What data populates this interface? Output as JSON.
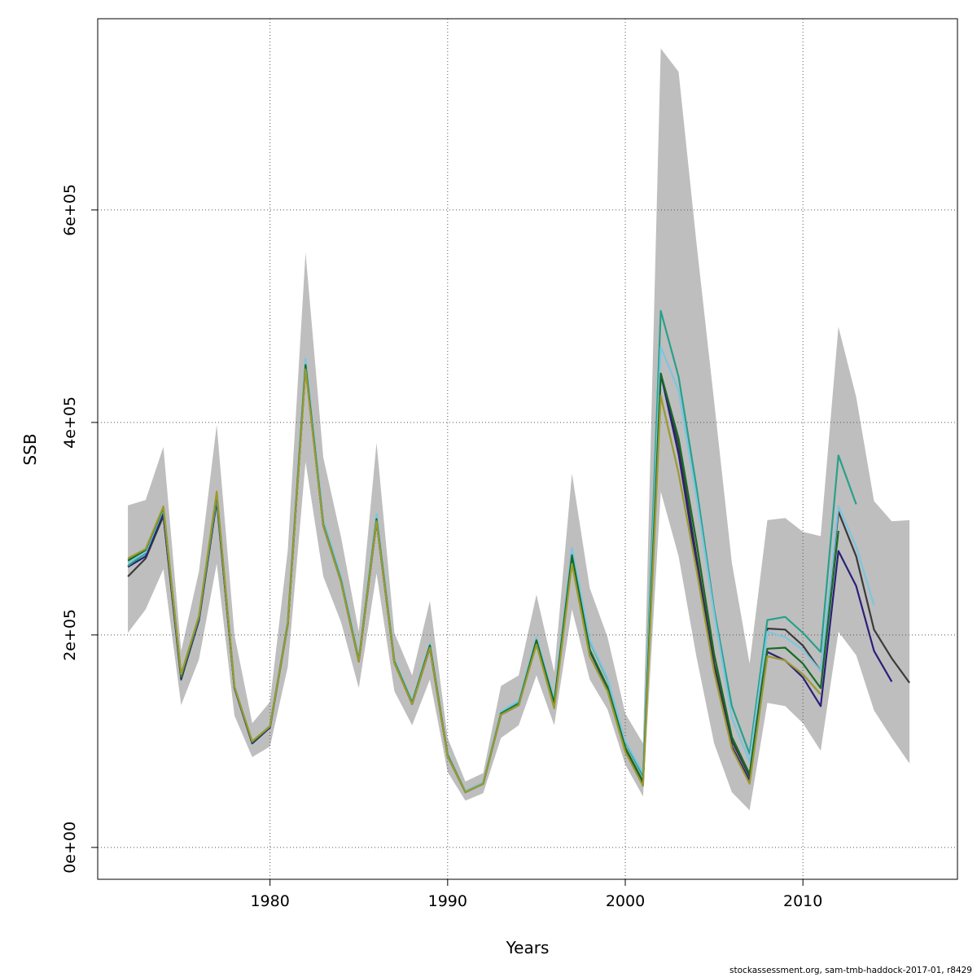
{
  "chart_data": {
    "type": "line",
    "xlabel": "Years",
    "ylabel": "SSB",
    "xlim": [
      1970.3,
      2018.7
    ],
    "ylim": [
      -30000,
      780000
    ],
    "x_ticks": [
      1980,
      1990,
      2000,
      2010
    ],
    "x_tick_labels": [
      "1980",
      "1990",
      "2000",
      "2010"
    ],
    "y_ticks": [
      0,
      200000,
      400000,
      600000
    ],
    "y_tick_labels": [
      "0e+00",
      "2e+05",
      "4e+05",
      "6e+05"
    ],
    "grid": true,
    "legend": "none",
    "colors": {
      "band": "#bebebe",
      "grid": "#555555",
      "series": [
        "#3a3a3a",
        "#2a1f7a",
        "#28a08a",
        "#7cc6e0",
        "#166b26",
        "#9a9a30"
      ]
    },
    "confidence_band": {
      "x": [
        1972,
        1973,
        1974,
        1975,
        1976,
        1977,
        1978,
        1979,
        1980,
        1981,
        1982,
        1983,
        1984,
        1985,
        1986,
        1987,
        1988,
        1989,
        1990,
        1991,
        1992,
        1993,
        1994,
        1995,
        1996,
        1997,
        1998,
        1999,
        2000,
        2001,
        2002,
        2003,
        2004,
        2005,
        2006,
        2007,
        2008,
        2009,
        2010,
        2011,
        2012,
        2013,
        2014,
        2015,
        2016
      ],
      "upper": [
        322000,
        327000,
        377000,
        185000,
        260000,
        398000,
        200000,
        117000,
        137000,
        280000,
        560000,
        367000,
        292000,
        203000,
        381000,
        202000,
        162000,
        232000,
        103000,
        62000,
        70000,
        152000,
        162000,
        238000,
        165000,
        352000,
        244000,
        198000,
        126000,
        98000,
        752000,
        730000,
        570000,
        420000,
        268000,
        173000,
        308000,
        310000,
        297000,
        293000,
        490000,
        424000,
        326000,
        307000,
        308000
      ],
      "lower": [
        202000,
        224000,
        262000,
        134000,
        177000,
        267000,
        124000,
        85000,
        95000,
        170000,
        363000,
        255000,
        212000,
        150000,
        258000,
        147000,
        115000,
        158000,
        71000,
        44000,
        51000,
        103000,
        115000,
        162000,
        115000,
        224000,
        158000,
        130000,
        78000,
        48000,
        335000,
        274000,
        180000,
        98000,
        52000,
        35000,
        136000,
        133000,
        117000,
        91000,
        203000,
        181000,
        129000,
        103000,
        79000
      ]
    },
    "series": [
      {
        "x": [
          1972,
          1973,
          1974,
          1975,
          1976,
          1977,
          1978,
          1979,
          1980,
          1981,
          1982,
          1983,
          1984,
          1985,
          1986,
          1987,
          1988,
          1989,
          1990,
          1991,
          1992,
          1993,
          1994,
          1995,
          1996,
          1997,
          1998,
          1999,
          2000,
          2001,
          2002,
          2003,
          2004,
          2005,
          2006,
          2007,
          2008,
          2009,
          2010,
          2011,
          2012,
          2013,
          2014,
          2015,
          2016
        ],
        "y": [
          255000,
          272000,
          312000,
          158000,
          214000,
          326000,
          150000,
          98000,
          113000,
          210000,
          452000,
          303000,
          250000,
          175000,
          307000,
          174000,
          135000,
          188000,
          86000,
          52000,
          60000,
          125000,
          134000,
          193000,
          134000,
          270000,
          185000,
          150000,
          93000,
          61000,
          446000,
          378000,
          275000,
          173000,
          100000,
          67000,
          206000,
          205000,
          190000,
          166000,
          316000,
          274000,
          205000,
          178000,
          155000
        ]
      },
      {
        "x": [
          1972,
          1973,
          1974,
          1975,
          1976,
          1977,
          1978,
          1979,
          1980,
          1981,
          1982,
          1983,
          1984,
          1985,
          1986,
          1987,
          1988,
          1989,
          1990,
          1991,
          1992,
          1993,
          1994,
          1995,
          1996,
          1997,
          1998,
          1999,
          2000,
          2001,
          2002,
          2003,
          2004,
          2005,
          2006,
          2007,
          2008,
          2009,
          2010,
          2011,
          2012,
          2013,
          2014,
          2015
        ],
        "y": [
          264000,
          274000,
          315000,
          160000,
          214000,
          328000,
          150000,
          98000,
          113000,
          210000,
          452000,
          303000,
          250000,
          175000,
          307000,
          174000,
          135000,
          188000,
          86000,
          52000,
          60000,
          125000,
          134000,
          193000,
          134000,
          270000,
          185000,
          150000,
          93000,
          61000,
          446000,
          370000,
          268000,
          167000,
          95000,
          63000,
          184000,
          176000,
          160000,
          133000,
          279000,
          246000,
          185000,
          156000
        ]
      },
      {
        "x": [
          1972,
          1973,
          1974,
          1975,
          1976,
          1977,
          1978,
          1979,
          1980,
          1981,
          1982,
          1983,
          1984,
          1985,
          1986,
          1987,
          1988,
          1989,
          1990,
          1991,
          1992,
          1993,
          1994,
          1995,
          1996,
          1997,
          1998,
          1999,
          2000,
          2001,
          2002,
          2003,
          2004,
          2005,
          2006,
          2007,
          2008,
          2009,
          2010,
          2011,
          2012,
          2013
        ],
        "y": [
          265000,
          277000,
          318000,
          161000,
          216000,
          330000,
          151000,
          99000,
          114000,
          212000,
          458000,
          307000,
          254000,
          177000,
          312000,
          176000,
          137000,
          191000,
          87000,
          53000,
          61000,
          127000,
          137000,
          197000,
          138000,
          281000,
          194000,
          158000,
          99000,
          67000,
          505000,
          443000,
          340000,
          224000,
          133000,
          88000,
          214000,
          217000,
          202000,
          184000,
          369000,
          323000
        ]
      },
      {
        "x": [
          1972,
          1973,
          1974,
          1975,
          1976,
          1977,
          1978,
          1979,
          1980,
          1981,
          1982,
          1983,
          1984,
          1985,
          1986,
          1987,
          1988,
          1989,
          1990,
          1991,
          1992,
          1993,
          1994,
          1995,
          1996,
          1997,
          1998,
          1999,
          2000,
          2001,
          2002,
          2003,
          2004,
          2005,
          2006,
          2007,
          2008,
          2009,
          2010,
          2011,
          2012,
          2013,
          2014
        ],
        "y": [
          268000,
          278000,
          319000,
          162000,
          217000,
          331000,
          152000,
          99000,
          115000,
          213000,
          460000,
          308000,
          255000,
          178000,
          314000,
          177000,
          138000,
          192000,
          88000,
          53000,
          61000,
          128000,
          138000,
          198000,
          140000,
          282000,
          195000,
          159000,
          100000,
          70000,
          471000,
          430000,
          330000,
          220000,
          122000,
          81000,
          203000,
          198000,
          186000,
          166000,
          321000,
          283000,
          228000
        ]
      },
      {
        "x": [
          1972,
          1973,
          1974,
          1975,
          1976,
          1977,
          1978,
          1979,
          1980,
          1981,
          1982,
          1983,
          1984,
          1985,
          1986,
          1987,
          1988,
          1989,
          1990,
          1991,
          1992,
          1993,
          1994,
          1995,
          1996,
          1997,
          1998,
          1999,
          2000,
          2001,
          2002,
          2003,
          2004,
          2005,
          2006,
          2007,
          2008,
          2009,
          2010,
          2011,
          2012
        ],
        "y": [
          270000,
          280000,
          320000,
          162000,
          217000,
          333000,
          151000,
          99000,
          114000,
          211000,
          454000,
          304000,
          251000,
          176000,
          309000,
          175000,
          136000,
          190000,
          87000,
          52000,
          60000,
          126000,
          135000,
          195000,
          136000,
          275000,
          186000,
          151000,
          94000,
          62000,
          446000,
          385000,
          288000,
          182000,
          104000,
          69000,
          187000,
          188000,
          173000,
          150000,
          298000
        ]
      },
      {
        "x": [
          1972,
          1973,
          1974,
          1975,
          1976,
          1977,
          1978,
          1979,
          1980,
          1981,
          1982,
          1983,
          1984,
          1985,
          1986,
          1987,
          1988,
          1989,
          1990,
          1991,
          1992,
          1993,
          1994,
          1995,
          1996,
          1997,
          1998,
          1999,
          2000,
          2001,
          2002,
          2003,
          2004,
          2005,
          2006,
          2007,
          2008,
          2009,
          2010,
          2011
        ],
        "y": [
          272000,
          281000,
          321000,
          163000,
          218000,
          335000,
          151000,
          100000,
          114000,
          210000,
          450000,
          303000,
          250000,
          175000,
          307000,
          174000,
          135000,
          188000,
          86000,
          52000,
          60000,
          125000,
          134000,
          191000,
          131000,
          267000,
          180000,
          147000,
          90000,
          58000,
          425000,
          352000,
          262000,
          165000,
          93000,
          60000,
          180000,
          176000,
          163000,
          144000
        ]
      }
    ]
  },
  "footer": {
    "credit": "stockassessment.org, sam-tmb-haddock-2017-01, r8429"
  }
}
